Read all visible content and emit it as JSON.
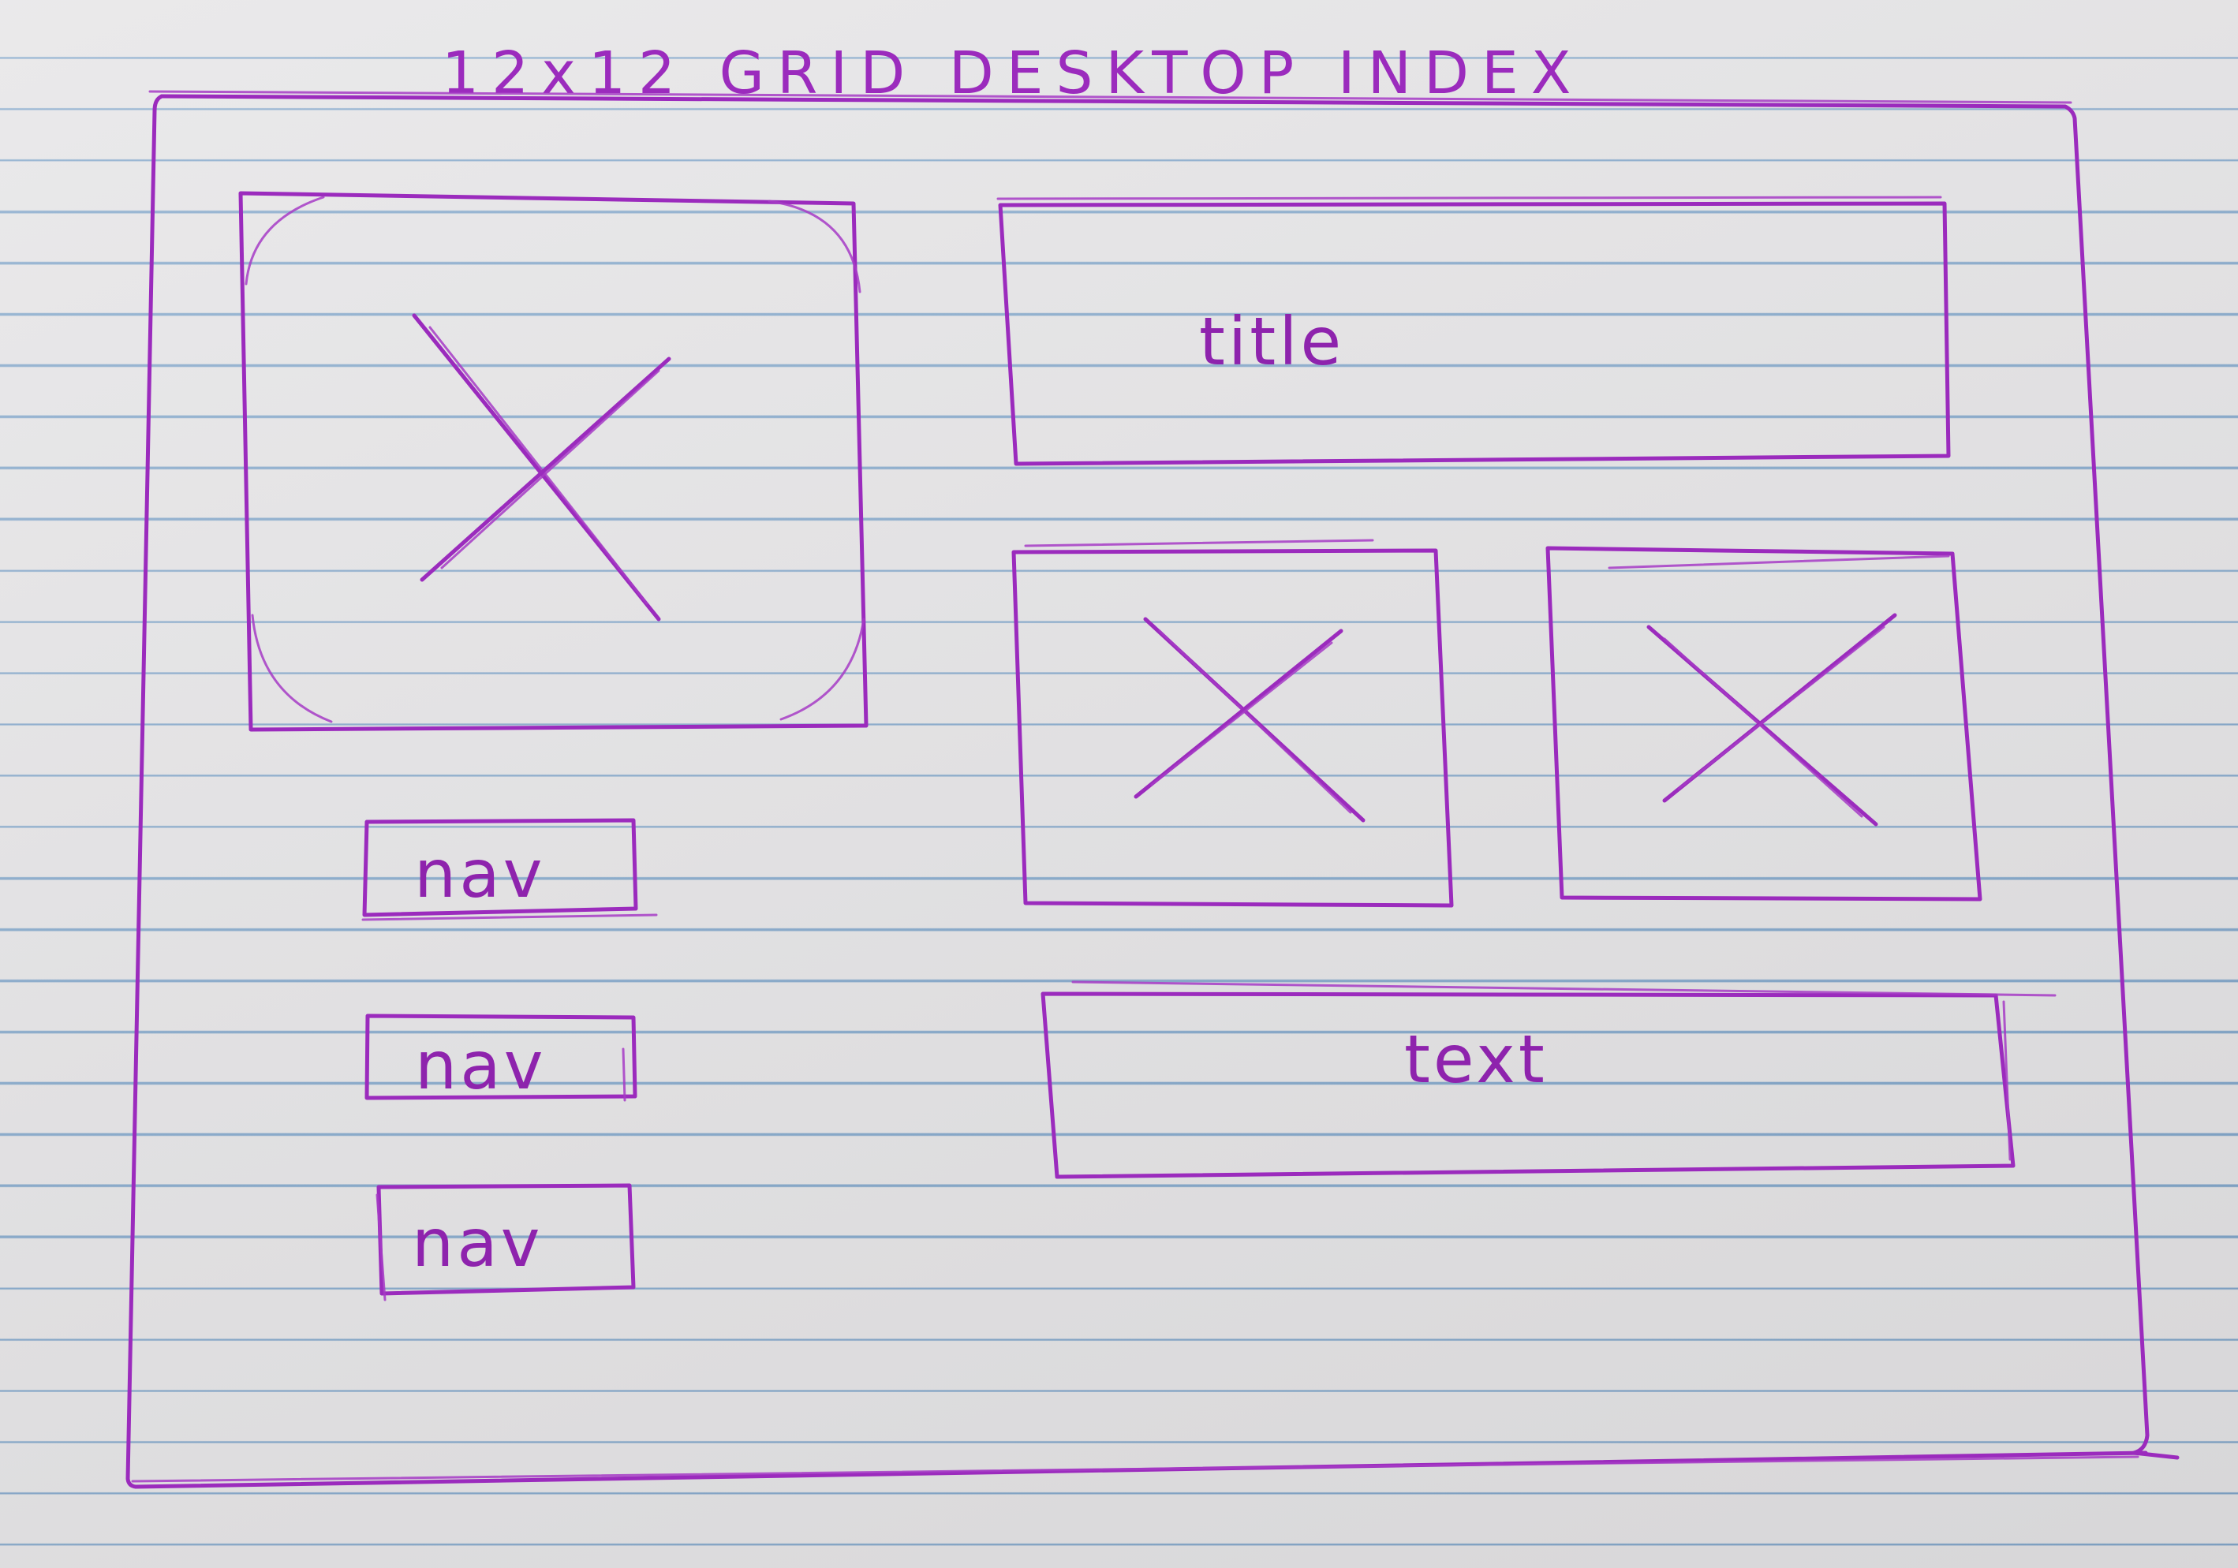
{
  "heading": "12x12 GRID DESKTOP INDEX",
  "title_label": "title",
  "text_label": "text",
  "nav_items": [
    {
      "label": "nav"
    },
    {
      "label": "nav"
    },
    {
      "label": "nav"
    }
  ],
  "colors": {
    "ink": "#9b2bbd",
    "paper": "#e3e2e4",
    "rule_line": "#5c8ebe"
  }
}
